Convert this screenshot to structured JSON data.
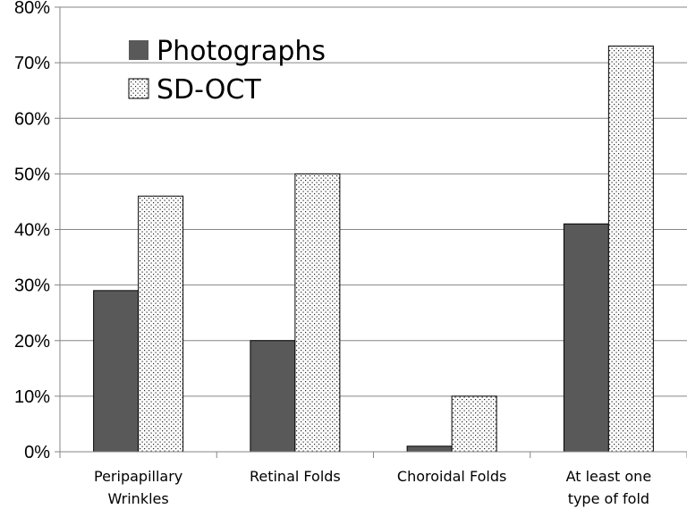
{
  "chart_data": {
    "type": "bar",
    "categories": [
      [
        "Peripapillary",
        "Wrinkles"
      ],
      [
        "Retinal Folds"
      ],
      [
        "Choroidal Folds"
      ],
      [
        "At least one",
        "type of fold"
      ]
    ],
    "series": [
      {
        "name": "Photographs",
        "values": [
          29,
          20,
          1,
          41
        ],
        "color": "#595959",
        "pattern": "solid"
      },
      {
        "name": "SD-OCT",
        "values": [
          46,
          50,
          10,
          73
        ],
        "color": "#ffffff",
        "pattern": "dotted"
      }
    ],
    "y_ticks": [
      "0%",
      "10%",
      "20%",
      "30%",
      "40%",
      "50%",
      "60%",
      "70%",
      "80%"
    ],
    "ylim": [
      0,
      80
    ],
    "y_unit": "%",
    "grid": true,
    "legend_position": "top-left"
  }
}
